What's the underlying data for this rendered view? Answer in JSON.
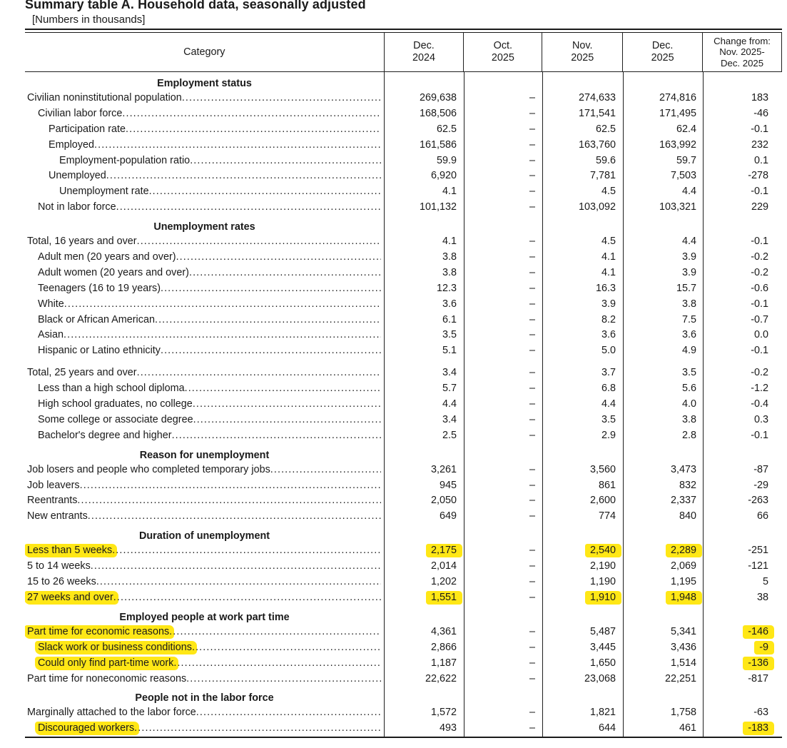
{
  "title": "Summary table A. Household data, seasonally adjusted",
  "subtitle": "[Numbers in thousands]",
  "theme": {
    "highlight_color": "#ffe716",
    "rule_color": "#1a1a1a",
    "text_color": "#1a1a1a"
  },
  "columns": [
    {
      "id": "category",
      "lines": [
        "Category"
      ]
    },
    {
      "id": "dec-2024",
      "lines": [
        "Dec.",
        "2024"
      ]
    },
    {
      "id": "oct-2025",
      "lines": [
        "Oct.",
        "2025"
      ]
    },
    {
      "id": "nov-2025",
      "lines": [
        "Nov.",
        "2025"
      ]
    },
    {
      "id": "dec-2025",
      "lines": [
        "Dec.",
        "2025"
      ]
    },
    {
      "id": "change",
      "lines": [
        "Change from:",
        "Nov. 2025-",
        "Dec. 2025"
      ]
    }
  ],
  "sections": [
    {
      "header": "Employment status",
      "rows": [
        {
          "label": "Civilian noninstitutional population",
          "indent": 0,
          "values": [
            "269,638",
            "–",
            "274,633",
            "274,816",
            "183"
          ]
        },
        {
          "label": "Civilian labor force",
          "indent": 1,
          "values": [
            "168,506",
            "–",
            "171,541",
            "171,495",
            "-46"
          ]
        },
        {
          "label": "Participation rate",
          "indent": 2,
          "values": [
            "62.5",
            "–",
            "62.5",
            "62.4",
            "-0.1"
          ]
        },
        {
          "label": "Employed",
          "indent": 2,
          "values": [
            "161,586",
            "–",
            "163,760",
            "163,992",
            "232"
          ]
        },
        {
          "label": "Employment-population ratio",
          "indent": 3,
          "values": [
            "59.9",
            "–",
            "59.6",
            "59.7",
            "0.1"
          ]
        },
        {
          "label": "Unemployed",
          "indent": 2,
          "values": [
            "6,920",
            "–",
            "7,781",
            "7,503",
            "-278"
          ]
        },
        {
          "label": "Unemployment rate",
          "indent": 3,
          "values": [
            "4.1",
            "–",
            "4.5",
            "4.4",
            "-0.1"
          ]
        },
        {
          "label": "Not in labor force",
          "indent": 1,
          "values": [
            "101,132",
            "–",
            "103,092",
            "103,321",
            "229"
          ]
        }
      ]
    },
    {
      "header": "Unemployment rates",
      "rows": [
        {
          "label": "Total, 16 years and over",
          "indent": 0,
          "values": [
            "4.1",
            "–",
            "4.5",
            "4.4",
            "-0.1"
          ]
        },
        {
          "label": "Adult men (20 years and over)",
          "indent": 1,
          "values": [
            "3.8",
            "–",
            "4.1",
            "3.9",
            "-0.2"
          ]
        },
        {
          "label": "Adult women (20 years and over)",
          "indent": 1,
          "values": [
            "3.8",
            "–",
            "4.1",
            "3.9",
            "-0.2"
          ]
        },
        {
          "label": "Teenagers (16 to 19 years)",
          "indent": 1,
          "values": [
            "12.3",
            "–",
            "16.3",
            "15.7",
            "-0.6"
          ]
        },
        {
          "label": "White",
          "indent": 1,
          "values": [
            "3.6",
            "–",
            "3.9",
            "3.8",
            "-0.1"
          ]
        },
        {
          "label": "Black or African American",
          "indent": 1,
          "values": [
            "6.1",
            "–",
            "8.2",
            "7.5",
            "-0.7"
          ]
        },
        {
          "label": "Asian",
          "indent": 1,
          "values": [
            "3.5",
            "–",
            "3.6",
            "3.6",
            "0.0"
          ]
        },
        {
          "label": "Hispanic or Latino ethnicity",
          "indent": 1,
          "values": [
            "5.1",
            "–",
            "5.0",
            "4.9",
            "-0.1"
          ]
        }
      ]
    },
    {
      "header": null,
      "rows": [
        {
          "label": "Total, 25 years and over",
          "indent": 0,
          "values": [
            "3.4",
            "–",
            "3.7",
            "3.5",
            "-0.2"
          ]
        },
        {
          "label": "Less than a high school diploma",
          "indent": 1,
          "values": [
            "5.7",
            "–",
            "6.8",
            "5.6",
            "-1.2"
          ]
        },
        {
          "label": "High school graduates, no college",
          "indent": 1,
          "values": [
            "4.4",
            "–",
            "4.4",
            "4.0",
            "-0.4"
          ]
        },
        {
          "label": "Some college or associate degree",
          "indent": 1,
          "values": [
            "3.4",
            "–",
            "3.5",
            "3.8",
            "0.3"
          ]
        },
        {
          "label": "Bachelor's degree and higher",
          "indent": 1,
          "values": [
            "2.5",
            "–",
            "2.9",
            "2.8",
            "-0.1"
          ]
        }
      ]
    },
    {
      "header": "Reason for unemployment",
      "rows": [
        {
          "label": "Job losers and people who completed temporary jobs",
          "indent": 0,
          "values": [
            "3,261",
            "–",
            "3,560",
            "3,473",
            "-87"
          ]
        },
        {
          "label": "Job leavers",
          "indent": 0,
          "values": [
            "945",
            "–",
            "861",
            "832",
            "-29"
          ]
        },
        {
          "label": "Reentrants",
          "indent": 0,
          "values": [
            "2,050",
            "–",
            "2,600",
            "2,337",
            "-263"
          ]
        },
        {
          "label": "New entrants",
          "indent": 0,
          "values": [
            "649",
            "–",
            "774",
            "840",
            "66"
          ]
        }
      ]
    },
    {
      "header": "Duration of unemployment",
      "rows": [
        {
          "label": "Less than 5 weeks",
          "indent": 0,
          "values": [
            "2,175",
            "–",
            "2,540",
            "2,289",
            "-251"
          ],
          "hl_label": true,
          "hl_values": [
            0,
            2,
            3
          ]
        },
        {
          "label": "5 to 14 weeks",
          "indent": 0,
          "values": [
            "2,014",
            "–",
            "2,190",
            "2,069",
            "-121"
          ]
        },
        {
          "label": "15 to 26 weeks",
          "indent": 0,
          "values": [
            "1,202",
            "–",
            "1,190",
            "1,195",
            "5"
          ]
        },
        {
          "label": "27 weeks and over",
          "indent": 0,
          "values": [
            "1,551",
            "–",
            "1,910",
            "1,948",
            "38"
          ],
          "hl_label": true,
          "hl_values": [
            0,
            2,
            3
          ]
        }
      ]
    },
    {
      "header": "Employed people at work part time",
      "rows": [
        {
          "label": "Part time for economic reasons",
          "indent": 0,
          "values": [
            "4,361",
            "–",
            "5,487",
            "5,341",
            "-146"
          ],
          "hl_label": true,
          "hl_values": [
            4
          ]
        },
        {
          "label": "Slack work or business conditions",
          "indent": 1,
          "values": [
            "2,866",
            "–",
            "3,445",
            "3,436",
            "-9"
          ],
          "hl_label": true,
          "hl_values": [
            4
          ]
        },
        {
          "label": "Could only find part-time work",
          "indent": 1,
          "values": [
            "1,187",
            "–",
            "1,650",
            "1,514",
            "-136"
          ],
          "hl_label": true,
          "hl_values": [
            4
          ]
        },
        {
          "label": "Part time for noneconomic reasons",
          "indent": 0,
          "values": [
            "22,622",
            "–",
            "23,068",
            "22,251",
            "-817"
          ]
        }
      ]
    },
    {
      "header": "People not in the labor force",
      "rows": [
        {
          "label": "Marginally attached to the labor force",
          "indent": 0,
          "values": [
            "1,572",
            "–",
            "1,821",
            "1,758",
            "-63"
          ]
        },
        {
          "label": "Discouraged workers",
          "indent": 1,
          "values": [
            "493",
            "–",
            "644",
            "461",
            "-183"
          ],
          "hl_label": true,
          "hl_values": [
            4
          ]
        }
      ]
    }
  ]
}
